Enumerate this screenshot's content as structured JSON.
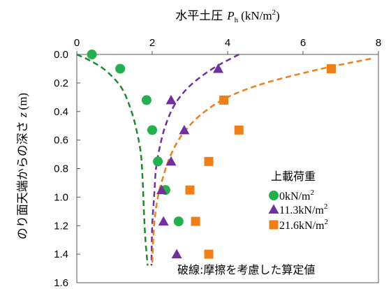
{
  "chart_data": {
    "type": "scatter",
    "title": "",
    "xlabel": {
      "prefix": "水平土圧",
      "symbol": "P",
      "subscript": "h",
      "unit_prefix": "(kN/m",
      "unit_sup": "2",
      "unit_suffix": ")"
    },
    "ylabel": {
      "prefix": "のり面天端からの深さ",
      "symbol": "z",
      "unit": "(m)"
    },
    "xlim": [
      0,
      8
    ],
    "ylim": [
      1.6,
      0.0
    ],
    "x_axis_position": "top",
    "y_inverted": true,
    "grid": false,
    "xticks": [
      "0",
      "2",
      "4",
      "6",
      "8"
    ],
    "yticks": [
      "0.0",
      "0.2",
      "0.4",
      "0.6",
      "0.8",
      "1.0",
      "1.2",
      "1.4",
      "1.6"
    ],
    "legend": {
      "title": "上載荷重",
      "placement": "right",
      "entries": [
        {
          "label": "0kN/m",
          "sup": "2"
        },
        {
          "label": "11.3kN/m",
          "sup": "2"
        },
        {
          "label": "21.6kN/m",
          "sup": "2"
        }
      ]
    },
    "note": "破線:摩擦を考慮した算定値",
    "series": [
      {
        "name": "0kN/m2",
        "marker": "circle",
        "color": "#22b14c",
        "points": [
          [
            0.4,
            0.0
          ],
          [
            1.15,
            0.1
          ],
          [
            1.85,
            0.32
          ],
          [
            2.0,
            0.53
          ],
          [
            2.15,
            0.75
          ],
          [
            2.35,
            0.95
          ],
          [
            2.7,
            1.17
          ]
        ]
      },
      {
        "name": "11.3kN/m2",
        "marker": "triangle",
        "color": "#7030a0",
        "points": [
          [
            3.75,
            0.1
          ],
          [
            2.5,
            0.32
          ],
          [
            2.85,
            0.53
          ],
          [
            2.5,
            0.75
          ],
          [
            2.25,
            0.95
          ],
          [
            2.3,
            1.17
          ],
          [
            2.65,
            1.4
          ]
        ]
      },
      {
        "name": "21.6kN/m2",
        "marker": "square",
        "color": "#f07f17",
        "points": [
          [
            6.75,
            0.1
          ],
          [
            3.9,
            0.32
          ],
          [
            4.3,
            0.53
          ],
          [
            3.5,
            0.75
          ],
          [
            3.0,
            0.95
          ],
          [
            3.15,
            1.17
          ],
          [
            3.5,
            1.4
          ]
        ]
      }
    ],
    "curves": [
      {
        "name": "0kN/m2",
        "style": "dashed",
        "color": "#1e8a2e",
        "points": [
          [
            0.0,
            0.0
          ],
          [
            0.4,
            0.05
          ],
          [
            0.8,
            0.12
          ],
          [
            1.2,
            0.24
          ],
          [
            1.45,
            0.4
          ],
          [
            1.6,
            0.55
          ],
          [
            1.7,
            0.7
          ],
          [
            1.75,
            0.9
          ],
          [
            1.78,
            1.1
          ],
          [
            1.82,
            1.3
          ],
          [
            1.88,
            1.48
          ]
        ]
      },
      {
        "name": "11.3kN/m2",
        "style": "dashed",
        "color": "#7030a0",
        "points": [
          [
            4.3,
            0.0
          ],
          [
            3.6,
            0.1
          ],
          [
            3.0,
            0.22
          ],
          [
            2.6,
            0.35
          ],
          [
            2.35,
            0.5
          ],
          [
            2.2,
            0.65
          ],
          [
            2.1,
            0.8
          ],
          [
            2.05,
            1.0
          ],
          [
            2.0,
            1.2
          ],
          [
            1.98,
            1.48
          ]
        ]
      },
      {
        "name": "21.6kN/m2",
        "style": "dashed",
        "color": "#f07f17",
        "points": [
          [
            7.8,
            0.03
          ],
          [
            6.5,
            0.1
          ],
          [
            5.0,
            0.2
          ],
          [
            4.0,
            0.3
          ],
          [
            3.3,
            0.42
          ],
          [
            2.8,
            0.56
          ],
          [
            2.5,
            0.7
          ],
          [
            2.3,
            0.85
          ],
          [
            2.15,
            1.0
          ],
          [
            2.05,
            1.2
          ],
          [
            2.0,
            1.48
          ]
        ]
      }
    ]
  }
}
